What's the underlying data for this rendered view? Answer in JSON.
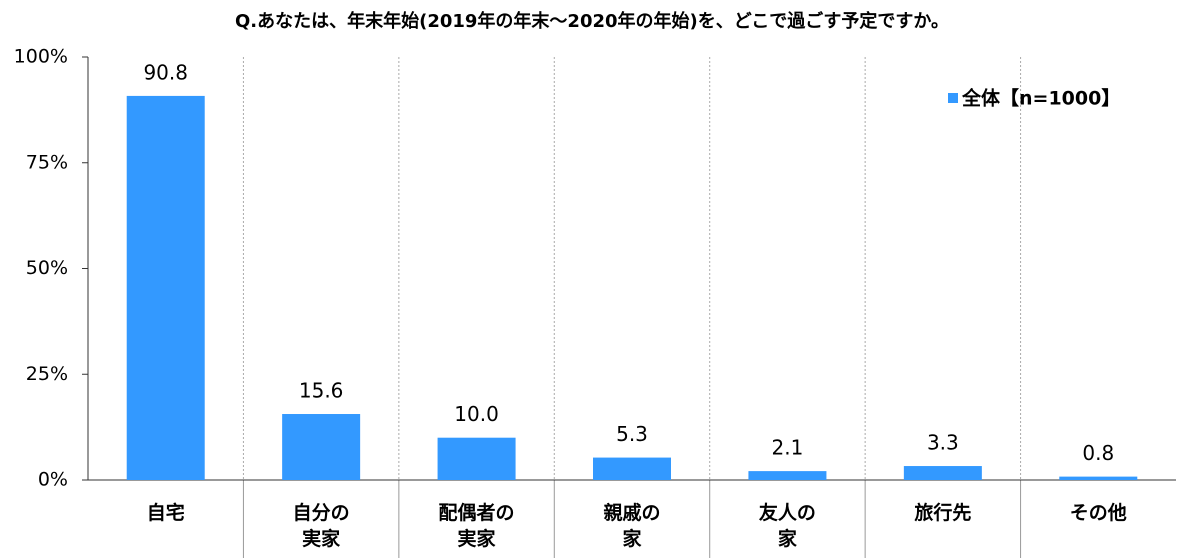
{
  "chart_data": {
    "type": "bar",
    "title": "Q.あなたは、年末年始(2019年の年末～2020年の年始)を、どこで過ごす予定ですか。",
    "categories": [
      "自宅",
      "自分の\n実家",
      "配偶者の\n実家",
      "親戚の\n家",
      "友人の\n家",
      "旅行先",
      "その他"
    ],
    "series": [
      {
        "name": "全体【n=1000】",
        "color": "#3399ff",
        "values": [
          90.8,
          15.6,
          10.0,
          5.3,
          2.1,
          3.3,
          0.8
        ],
        "value_labels": [
          "90.8",
          "15.6",
          "10.0",
          "5.3",
          "2.1",
          "3.3",
          "0.8"
        ]
      }
    ],
    "ylim": [
      0,
      100
    ],
    "yticks": [
      {
        "value": 0,
        "label": "0%"
      },
      {
        "value": 25,
        "label": "25%"
      },
      {
        "value": 50,
        "label": "50%"
      },
      {
        "value": 75,
        "label": "75%"
      },
      {
        "value": 100,
        "label": "100%"
      }
    ],
    "legend": "upper right"
  }
}
